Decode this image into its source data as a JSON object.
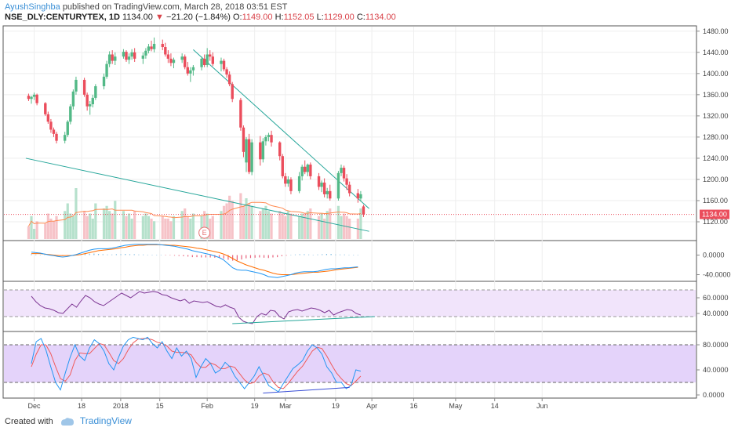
{
  "header": {
    "author": "AyushSinghba",
    "published": "published on TradingView.com, March 28, 2018 03:51 EST",
    "symbol": "NSE_DLY:CENTURYTEX, 1D",
    "last": "1134.00",
    "change_arrow": "▼",
    "change": "−21.20 (−1.84%)",
    "o_label": "O:",
    "o": "1149.00",
    "h_label": "H:",
    "h": "1152.05",
    "l_label": "L:",
    "l": "1129.00",
    "c_label": "C:",
    "c": "1134.00"
  },
  "footer": {
    "created_with": "Created with",
    "brand": "TradingView"
  },
  "colors": {
    "up": "#53b987",
    "down": "#eb4d5c",
    "trend": "#26a69a",
    "purple": "#7e3794",
    "macd": "#2196f3",
    "signal": "#ff6d00"
  },
  "chart_data": {
    "type": "candlestick",
    "symbol": "NSE_DLY:CENTURYTEX",
    "interval": "1D",
    "price_axis_ticks": [
      "1480.00",
      "1440.00",
      "1400.00",
      "1360.00",
      "1320.00",
      "1280.00",
      "1240.00",
      "1200.00",
      "1160.00",
      "1120.00"
    ],
    "price_axis_values": [
      1480,
      1440,
      1400,
      1360,
      1320,
      1280,
      1240,
      1200,
      1160,
      1120
    ],
    "ylim": [
      1086,
      1490
    ],
    "last_price_label": "1134.00",
    "last_price": 1134,
    "x_tick_labels": [
      "Dec",
      "18",
      "2018",
      "15",
      "Feb",
      "19",
      "Mar",
      "19",
      "Apr",
      "16",
      "May",
      "14",
      "Jun"
    ],
    "x_tick_days": [
      1,
      18,
      32,
      46,
      63,
      80,
      91,
      109,
      122,
      137,
      152,
      166,
      183
    ],
    "candle_days": [
      -1,
      0,
      1,
      2,
      5,
      6,
      7,
      8,
      9,
      12,
      13,
      14,
      15,
      16,
      19,
      20,
      21,
      22,
      23,
      26,
      27,
      28,
      29,
      30,
      33,
      34,
      35,
      36,
      37,
      40,
      41,
      42,
      43,
      44,
      47,
      48,
      49,
      50,
      51,
      54,
      55,
      56,
      57,
      58,
      61,
      62,
      63,
      64,
      65,
      68,
      69,
      70,
      71,
      72,
      75,
      76,
      77,
      78,
      79,
      82,
      83,
      84,
      85,
      86,
      89,
      90,
      91,
      92,
      93,
      96,
      97,
      98,
      99,
      100,
      103,
      104,
      105,
      106,
      107,
      110,
      111,
      112,
      113,
      114,
      117,
      118
    ],
    "candles": [
      [
        1358,
        1362,
        1348,
        1352
      ],
      [
        1352,
        1358,
        1343,
        1356
      ],
      [
        1356,
        1364,
        1350,
        1360
      ],
      [
        1360,
        1362,
        1340,
        1344
      ],
      [
        1344,
        1346,
        1320,
        1323
      ],
      [
        1323,
        1328,
        1305,
        1309
      ],
      [
        1309,
        1314,
        1288,
        1294
      ],
      [
        1294,
        1298,
        1280,
        1286
      ],
      [
        1286,
        1290,
        1268,
        1273
      ],
      [
        1273,
        1290,
        1268,
        1284
      ],
      [
        1284,
        1312,
        1280,
        1309
      ],
      [
        1309,
        1342,
        1304,
        1338
      ],
      [
        1338,
        1370,
        1332,
        1366
      ],
      [
        1366,
        1394,
        1360,
        1388
      ],
      [
        1388,
        1392,
        1356,
        1360
      ],
      [
        1360,
        1364,
        1330,
        1338
      ],
      [
        1338,
        1348,
        1322,
        1342
      ],
      [
        1342,
        1360,
        1336,
        1354
      ],
      [
        1354,
        1380,
        1350,
        1376
      ],
      [
        1376,
        1400,
        1370,
        1394
      ],
      [
        1394,
        1424,
        1390,
        1418
      ],
      [
        1418,
        1442,
        1412,
        1436
      ],
      [
        1436,
        1444,
        1418,
        1424
      ],
      [
        1424,
        1440,
        1416,
        1432
      ],
      [
        1432,
        1446,
        1428,
        1441
      ],
      [
        1441,
        1444,
        1422,
        1426
      ],
      [
        1426,
        1438,
        1418,
        1432
      ],
      [
        1432,
        1446,
        1426,
        1440
      ],
      [
        1440,
        1448,
        1422,
        1428
      ],
      [
        1428,
        1440,
        1418,
        1434
      ],
      [
        1434,
        1448,
        1428,
        1443
      ],
      [
        1443,
        1456,
        1438,
        1451
      ],
      [
        1451,
        1462,
        1442,
        1446
      ],
      [
        1446,
        1468,
        1440,
        1456
      ],
      [
        1456,
        1464,
        1444,
        1450
      ],
      [
        1450,
        1458,
        1432,
        1436
      ],
      [
        1436,
        1444,
        1420,
        1428
      ],
      [
        1428,
        1438,
        1414,
        1420
      ],
      [
        1420,
        1430,
        1410,
        1426
      ],
      [
        1426,
        1438,
        1420,
        1432
      ],
      [
        1432,
        1436,
        1408,
        1412
      ],
      [
        1412,
        1422,
        1396,
        1400
      ],
      [
        1400,
        1412,
        1384,
        1406
      ],
      [
        1406,
        1416,
        1396,
        1412
      ],
      [
        1412,
        1432,
        1406,
        1428
      ],
      [
        1428,
        1436,
        1412,
        1416
      ],
      [
        1416,
        1448,
        1412,
        1436
      ],
      [
        1436,
        1444,
        1424,
        1432
      ],
      [
        1432,
        1440,
        1414,
        1418
      ],
      [
        1418,
        1430,
        1404,
        1424
      ],
      [
        1424,
        1428,
        1404,
        1408
      ],
      [
        1408,
        1412,
        1392,
        1398
      ],
      [
        1398,
        1404,
        1376,
        1380
      ],
      [
        1380,
        1384,
        1346,
        1352
      ],
      [
        1350,
        1354,
        1292,
        1298
      ],
      [
        1298,
        1302,
        1242,
        1252
      ],
      [
        1232,
        1280,
        1214,
        1276
      ],
      [
        1276,
        1286,
        1210,
        1214
      ],
      [
        1214,
        1276,
        1208,
        1270
      ],
      [
        1270,
        1282,
        1226,
        1238
      ],
      [
        1238,
        1278,
        1232,
        1272
      ],
      [
        1272,
        1284,
        1264,
        1280
      ],
      [
        1280,
        1288,
        1272,
        1284
      ],
      [
        1284,
        1292,
        1262,
        1270
      ],
      [
        1270,
        1272,
        1236,
        1244
      ],
      [
        1244,
        1248,
        1202,
        1206
      ],
      [
        1206,
        1212,
        1186,
        1192
      ],
      [
        1192,
        1206,
        1186,
        1200
      ],
      [
        1200,
        1204,
        1172,
        1178
      ],
      [
        1178,
        1214,
        1174,
        1206
      ],
      [
        1206,
        1228,
        1198,
        1224
      ],
      [
        1224,
        1236,
        1210,
        1214
      ],
      [
        1214,
        1230,
        1206,
        1228
      ],
      [
        1228,
        1232,
        1200,
        1206
      ],
      [
        1206,
        1212,
        1180,
        1186
      ],
      [
        1186,
        1198,
        1176,
        1194
      ],
      [
        1194,
        1202,
        1166,
        1172
      ],
      [
        1172,
        1184,
        1164,
        1178
      ],
      [
        1178,
        1190,
        1160,
        1164
      ],
      [
        1164,
        1216,
        1160,
        1212
      ],
      [
        1212,
        1228,
        1206,
        1222
      ],
      [
        1222,
        1226,
        1196,
        1202
      ],
      [
        1202,
        1210,
        1180,
        1190
      ],
      [
        1190,
        1196,
        1168,
        1174
      ],
      [
        1174,
        1182,
        1156,
        1164
      ],
      [
        1164,
        1178,
        1158,
        1172
      ]
    ],
    "last_bar": [
      1149,
      1152.05,
      1129,
      1134
    ],
    "volume_relative": [
      0.25,
      0.45,
      0.2,
      0.35,
      0.3,
      0.5,
      0.4,
      0.35,
      0.45,
      0.55,
      0.7,
      0.5,
      0.45,
      1.0,
      0.55,
      0.45,
      0.5,
      0.4,
      0.7,
      0.6,
      0.65,
      0.55,
      0.5,
      0.75,
      0.55,
      0.45,
      0.5,
      0.4,
      0.55,
      0.45,
      0.5,
      0.45,
      0.4,
      0.35,
      0.45,
      0.4,
      0.4,
      0.35,
      0.45,
      0.55,
      0.6,
      0.45,
      0.4,
      0.5,
      0.45,
      0.55,
      0.5,
      0.4,
      0.45,
      0.55,
      0.65,
      0.7,
      0.85,
      0.75,
      0.9,
      0.65,
      0.8,
      0.7,
      0.65,
      0.55,
      0.6,
      0.65,
      0.55,
      0.5,
      0.55,
      0.5,
      0.45,
      0.55,
      0.5,
      0.45,
      0.5,
      0.5,
      0.55,
      0.6,
      0.45,
      0.5,
      0.4,
      0.55,
      0.6,
      0.65,
      0.45,
      0.5,
      0.45,
      0.4,
      0.4,
      0.6,
      0.35
    ],
    "earnings_marker": {
      "label": "E",
      "day": 62
    },
    "trendlines": [
      {
        "name": "upper",
        "from": {
          "day": 58,
          "price": 1445
        },
        "to": {
          "day": 121,
          "price": 1145
        }
      },
      {
        "name": "lower",
        "from": {
          "day": -2,
          "price": 1240
        },
        "to": {
          "day": 121,
          "price": 1102
        }
      }
    ],
    "macd_axis_ticks": [
      "0.0000",
      "-40.0000"
    ],
    "macd_axis_values": [
      0,
      -40
    ],
    "macd_ylim": [
      -52,
      28
    ],
    "macd_line": [
      6,
      5,
      4,
      2,
      0,
      -1,
      -3,
      -4,
      -3,
      -1,
      1,
      4,
      7,
      10,
      12,
      13,
      13,
      13,
      14,
      16,
      18,
      20,
      21,
      22,
      22,
      22,
      22,
      22,
      22,
      21,
      20,
      19,
      18,
      16,
      14,
      12,
      9,
      7,
      5,
      3,
      1,
      -2,
      -5,
      -10,
      -18,
      -26,
      -30,
      -31,
      -31,
      -33,
      -35,
      -37,
      -40,
      -44,
      -45,
      -46,
      -44,
      -42,
      -40,
      -37,
      -35,
      -34,
      -34,
      -34,
      -33,
      -31,
      -29,
      -28,
      -28,
      -27,
      -26,
      -26,
      -25,
      -24
    ],
    "signal_line": [
      3,
      3,
      3,
      2,
      1,
      0,
      -1,
      -1,
      -1,
      -1,
      0,
      1,
      3,
      5,
      7,
      9,
      10,
      11,
      12,
      13,
      15,
      16,
      18,
      19,
      20,
      20,
      21,
      21,
      21,
      21,
      21,
      20,
      20,
      19,
      18,
      17,
      16,
      14,
      13,
      11,
      9,
      7,
      5,
      2,
      -2,
      -7,
      -12,
      -16,
      -20,
      -23,
      -26,
      -29,
      -31,
      -34,
      -37,
      -39,
      -40,
      -40,
      -40,
      -39,
      -38,
      -37,
      -36,
      -35,
      -35,
      -34,
      -33,
      -32,
      -30,
      -29,
      -28,
      -27,
      -26,
      -25
    ],
    "rsi_axis_ticks": [
      "60.0000",
      "40.0000"
    ],
    "rsi_axis_values": [
      60,
      40
    ],
    "rsi_ylim": [
      18,
      80
    ],
    "rsi_bands": [
      70,
      30
    ],
    "rsi": [
      62,
      55,
      50,
      47,
      46,
      44,
      41,
      40,
      46,
      52,
      48,
      56,
      63,
      60,
      55,
      52,
      50,
      54,
      58,
      62,
      66,
      63,
      60,
      64,
      68,
      66,
      67,
      68,
      67,
      64,
      63,
      60,
      58,
      56,
      58,
      53,
      56,
      55,
      54,
      55,
      52,
      49,
      48,
      51,
      48,
      46,
      35,
      30,
      28,
      27,
      36,
      40,
      38,
      44,
      43,
      36,
      33,
      42,
      44,
      45,
      43,
      45,
      47,
      46,
      44,
      41,
      44,
      38,
      41,
      43,
      45,
      44,
      40,
      38
    ],
    "rsi_trendline": {
      "from": {
        "day": 72,
        "value": 27
      },
      "to": {
        "day": 123,
        "value": 36
      }
    },
    "stoch_axis_ticks": [
      "80.0000",
      "40.0000",
      "0.0000"
    ],
    "stoch_axis_values": [
      80,
      40,
      0
    ],
    "stoch_ylim": [
      -5,
      100
    ],
    "stoch_bands": [
      80,
      20
    ],
    "stoch_k": [
      50,
      85,
      90,
      72,
      45,
      20,
      8,
      35,
      60,
      80,
      62,
      55,
      75,
      88,
      82,
      70,
      50,
      40,
      60,
      78,
      88,
      92,
      90,
      88,
      92,
      82,
      75,
      85,
      70,
      58,
      75,
      62,
      70,
      58,
      28,
      45,
      58,
      50,
      35,
      40,
      52,
      45,
      30,
      20,
      10,
      20,
      30,
      45,
      30,
      15,
      10,
      5,
      18,
      30,
      42,
      48,
      55,
      70,
      80,
      75,
      65,
      45,
      35,
      20,
      20,
      10,
      15,
      40,
      38
    ],
    "stoch_d": [
      45,
      65,
      80,
      80,
      66,
      45,
      26,
      22,
      32,
      55,
      67,
      66,
      66,
      74,
      82,
      80,
      68,
      55,
      50,
      58,
      72,
      83,
      89,
      90,
      90,
      88,
      84,
      82,
      78,
      70,
      68,
      68,
      67,
      64,
      52,
      44,
      44,
      51,
      48,
      42,
      42,
      46,
      44,
      34,
      24,
      18,
      20,
      30,
      35,
      32,
      20,
      12,
      10,
      18,
      28,
      38,
      46,
      58,
      70,
      76,
      74,
      62,
      48,
      35,
      26,
      18,
      15,
      22,
      30
    ],
    "stoch_trendline": {
      "from": {
        "day": 83,
        "value": 3
      },
      "to": {
        "day": 114,
        "value": 12
      }
    }
  }
}
